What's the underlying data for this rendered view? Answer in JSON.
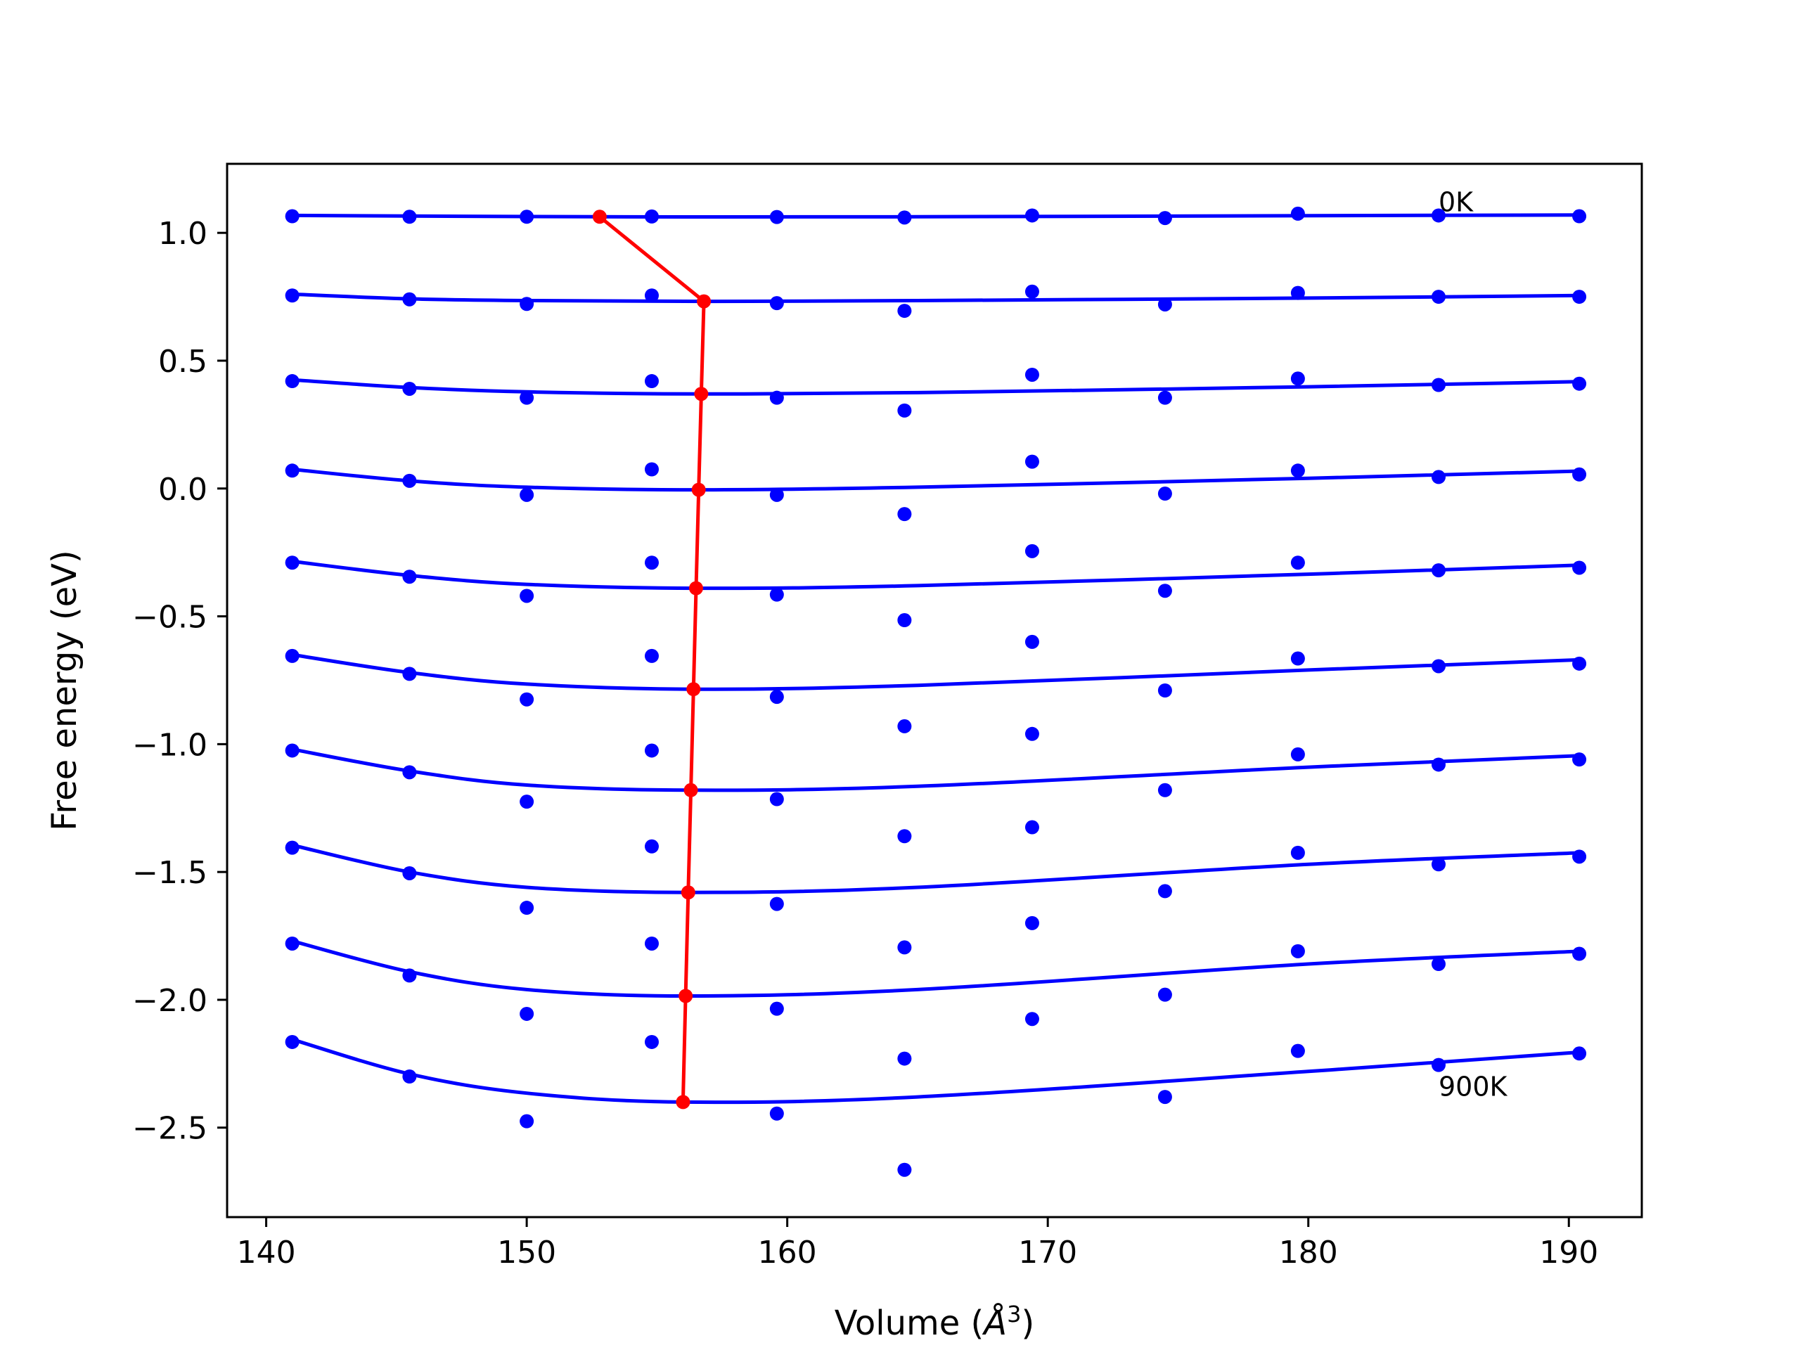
{
  "chart_data": {
    "type": "line",
    "title": "",
    "xlabel_prefix": "Volume (",
    "xlabel_symbol": "Å",
    "xlabel_exp": "3",
    "xlabel_suffix": ")",
    "ylabel": "Free energy (eV)",
    "xlim": [
      138.5,
      192.8
    ],
    "ylim": [
      -2.85,
      1.27
    ],
    "xticks": [
      140,
      150,
      160,
      170,
      180,
      190
    ],
    "xtick_labels": [
      "140",
      "150",
      "160",
      "170",
      "180",
      "190"
    ],
    "yticks": [
      1.0,
      0.5,
      0.0,
      -0.5,
      -1.0,
      -1.5,
      -2.0,
      -2.5
    ],
    "ytick_labels": [
      "1.0",
      "0.5",
      "0.0",
      "−0.5",
      "−1.0",
      "−1.5",
      "−2.0",
      "−2.5"
    ],
    "grid": false,
    "legend": "none",
    "colors": {
      "fit": "#0000ff",
      "points": "#0000ff",
      "minimum": "#ff0000",
      "axes": "#000000"
    },
    "annotations": [
      {
        "text": "0K",
        "x": 185.0,
        "y": 1.12
      },
      {
        "text": "900K",
        "x": 185.0,
        "y": -2.34
      }
    ],
    "volumes": [
      141.0,
      145.5,
      150.0,
      154.8,
      159.6,
      164.5,
      169.4,
      174.5,
      179.6,
      185.0,
      190.4
    ],
    "series": [
      {
        "points": [
          1.065,
          1.063,
          1.063,
          1.064,
          1.062,
          1.06,
          1.068,
          1.058,
          1.075,
          1.068,
          1.065
        ],
        "fit": [
          [
            141.0,
            1.068
          ],
          [
            152.8,
            1.063
          ],
          [
            165.0,
            1.063
          ],
          [
            190.4,
            1.07
          ]
        ]
      },
      {
        "points": [
          0.755,
          0.74,
          0.722,
          0.755,
          0.725,
          0.695,
          0.77,
          0.72,
          0.765,
          0.75,
          0.75
        ],
        "fit": [
          [
            141.0,
            0.76
          ],
          [
            145.5,
            0.742
          ],
          [
            150.0,
            0.735
          ],
          [
            156.8,
            0.732
          ],
          [
            165.0,
            0.735
          ],
          [
            180.0,
            0.745
          ],
          [
            190.4,
            0.755
          ]
        ]
      },
      {
        "points": [
          0.42,
          0.39,
          0.355,
          0.42,
          0.355,
          0.305,
          0.445,
          0.355,
          0.43,
          0.405,
          0.41
        ],
        "fit": [
          [
            141.0,
            0.425
          ],
          [
            145.5,
            0.395
          ],
          [
            150.0,
            0.378
          ],
          [
            156.7,
            0.37
          ],
          [
            165.0,
            0.375
          ],
          [
            180.0,
            0.398
          ],
          [
            190.4,
            0.418
          ]
        ]
      },
      {
        "points": [
          0.07,
          0.03,
          -0.025,
          0.075,
          -0.025,
          -0.1,
          0.105,
          -0.02,
          0.07,
          0.045,
          0.055
        ],
        "fit": [
          [
            141.0,
            0.075
          ],
          [
            145.5,
            0.03
          ],
          [
            150.0,
            0.005
          ],
          [
            156.6,
            -0.005
          ],
          [
            165.0,
            0.005
          ],
          [
            180.0,
            0.04
          ],
          [
            190.4,
            0.068
          ]
        ]
      },
      {
        "points": [
          -0.29,
          -0.345,
          -0.42,
          -0.29,
          -0.415,
          -0.515,
          -0.245,
          -0.4,
          -0.29,
          -0.32,
          -0.31
        ],
        "fit": [
          [
            141.0,
            -0.285
          ],
          [
            145.5,
            -0.34
          ],
          [
            150.0,
            -0.375
          ],
          [
            156.5,
            -0.39
          ],
          [
            165.0,
            -0.38
          ],
          [
            180.0,
            -0.335
          ],
          [
            190.4,
            -0.3
          ]
        ]
      },
      {
        "points": [
          -0.655,
          -0.725,
          -0.825,
          -0.655,
          -0.815,
          -0.93,
          -0.6,
          -0.79,
          -0.665,
          -0.695,
          -0.685
        ],
        "fit": [
          [
            141.0,
            -0.65
          ],
          [
            145.5,
            -0.72
          ],
          [
            150.0,
            -0.765
          ],
          [
            156.4,
            -0.785
          ],
          [
            165.0,
            -0.77
          ],
          [
            180.0,
            -0.71
          ],
          [
            190.4,
            -0.67
          ]
        ]
      },
      {
        "points": [
          -1.025,
          -1.11,
          -1.225,
          -1.025,
          -1.215,
          -1.36,
          -0.96,
          -1.18,
          -1.04,
          -1.08,
          -1.06
        ],
        "fit": [
          [
            141.0,
            -1.02
          ],
          [
            145.5,
            -1.105
          ],
          [
            150.0,
            -1.16
          ],
          [
            156.3,
            -1.18
          ],
          [
            165.0,
            -1.165
          ],
          [
            180.0,
            -1.09
          ],
          [
            190.4,
            -1.045
          ]
        ]
      },
      {
        "points": [
          -1.405,
          -1.505,
          -1.64,
          -1.4,
          -1.625,
          -1.795,
          -1.325,
          -1.575,
          -1.425,
          -1.47,
          -1.44
        ],
        "fit": [
          [
            141.0,
            -1.395
          ],
          [
            145.5,
            -1.5
          ],
          [
            150.0,
            -1.56
          ],
          [
            156.2,
            -1.58
          ],
          [
            165.0,
            -1.56
          ],
          [
            180.0,
            -1.47
          ],
          [
            190.4,
            -1.425
          ]
        ]
      },
      {
        "points": [
          -1.78,
          -1.905,
          -2.055,
          -1.78,
          -2.035,
          -2.23,
          -1.7,
          -1.98,
          -1.81,
          -1.86,
          -1.82
        ],
        "fit": [
          [
            141.0,
            -1.77
          ],
          [
            145.5,
            -1.89
          ],
          [
            150.0,
            -1.96
          ],
          [
            156.1,
            -1.985
          ],
          [
            165.0,
            -1.96
          ],
          [
            180.0,
            -1.86
          ],
          [
            190.4,
            -1.81
          ]
        ]
      },
      {
        "points": [
          -2.165,
          -2.3,
          -2.475,
          -2.165,
          -2.445,
          -2.665,
          -2.075,
          -2.38,
          -2.2,
          -2.255,
          -2.21
        ],
        "fit": [
          [
            141.0,
            -2.155
          ],
          [
            145.5,
            -2.29
          ],
          [
            150.0,
            -2.365
          ],
          [
            156.0,
            -2.4
          ],
          [
            165.0,
            -2.38
          ],
          [
            180.0,
            -2.28
          ],
          [
            190.4,
            -2.205
          ]
        ]
      }
    ],
    "minimum_path": {
      "x": [
        152.8,
        156.8,
        156.7,
        156.6,
        156.5,
        156.4,
        156.3,
        156.2,
        156.1,
        156.0
      ],
      "y": [
        1.063,
        0.732,
        0.37,
        -0.005,
        -0.39,
        -0.785,
        -1.18,
        -1.58,
        -1.985,
        -2.4
      ]
    }
  }
}
